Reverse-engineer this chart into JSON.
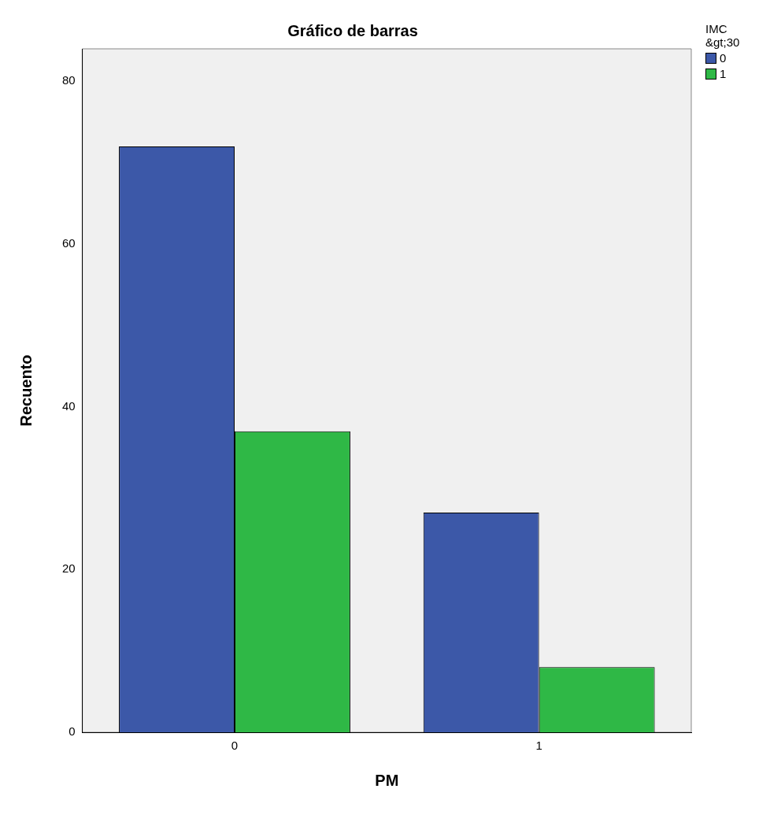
{
  "chart_data": {
    "type": "bar",
    "title": "Gráfico de barras",
    "xlabel": "PM",
    "ylabel": "Recuento",
    "legend_title": "IMC &gt;30",
    "categories": [
      "0",
      "1"
    ],
    "series": [
      {
        "name": "0",
        "color": "#3c58a8",
        "values": [
          72,
          27
        ]
      },
      {
        "name": "1",
        "color": "#2fb846",
        "values": [
          37,
          8
        ]
      }
    ],
    "ylim": [
      0,
      84
    ],
    "yticks": [
      0,
      20,
      40,
      60,
      80
    ],
    "grid": false,
    "legend": "top right"
  }
}
